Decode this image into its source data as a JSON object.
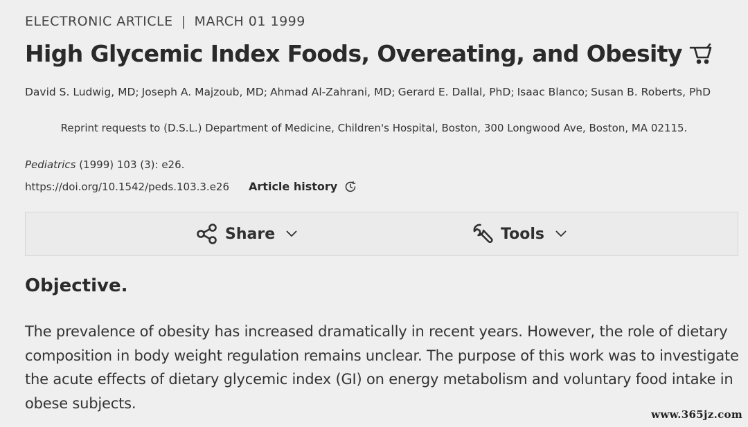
{
  "header": {
    "article_type": "ELECTRONIC ARTICLE",
    "separator": "|",
    "date": "MARCH 01 1999"
  },
  "article": {
    "title": "High Glycemic Index Foods, Overeating, and Obesity",
    "authors": [
      "David S. Ludwig, MD",
      "Joseph A. Majzoub, MD",
      "Ahmad Al-Zahrani, MD",
      "Gerard E. Dallal, PhD",
      "Isaac Blanco",
      "Susan B. Roberts, PhD"
    ],
    "author_separator": ";",
    "reprint": "Reprint requests to (D.S.L.) Department of Medicine, Children's Hospital, Boston, 300 Longwood Ave, Boston, MA 02115.",
    "citation": {
      "journal": "Pediatrics",
      "details": " (1999) 103 (3): e26."
    },
    "doi": "https://doi.org/10.1542/peds.103.3.e26",
    "history_label": "Article history"
  },
  "toolbar": {
    "share_label": "Share",
    "tools_label": "Tools"
  },
  "content": {
    "heading": "Objective.",
    "paragraph": "The prevalence of obesity has increased dramatically in recent years. However, the role of dietary composition in body weight regulation remains unclear. The purpose of this work was to investigate the acute effects of dietary glycemic index (GI) on energy metabolism and voluntary food intake in obese subjects."
  },
  "watermark": "www.365jz.com",
  "icons": {
    "cart": "cart-icon",
    "clock": "clock-history-icon",
    "share": "share-icon",
    "tools": "wrench-icon",
    "chevron": "chevron-down-icon"
  }
}
